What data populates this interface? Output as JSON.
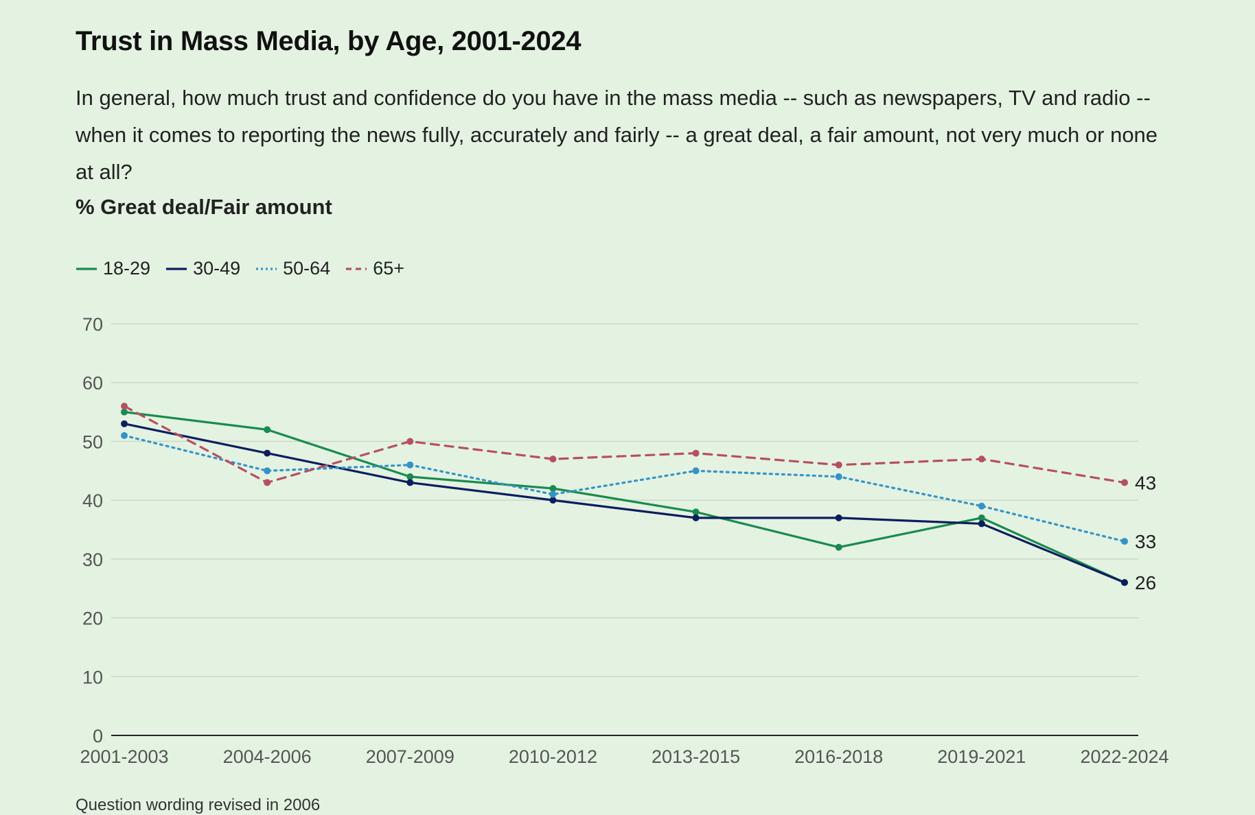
{
  "header": {
    "title": "Trust in Mass Media, by Age, 2001-2024",
    "subtitle": "In general, how much trust and confidence do you have in the mass media -- such as newspapers, TV and radio -- when it comes to reporting the news fully, accurately and fairly -- a great deal, a fair amount, not very much or none at all?",
    "unit_label": "% Great deal/Fair amount"
  },
  "footnote": "Question wording revised in 2006",
  "chart_data": {
    "type": "line",
    "title": "Trust in Mass Media, by Age, 2001-2024",
    "ylabel": "% Great deal/Fair amount",
    "xlabel": "",
    "categories": [
      "2001-2003",
      "2004-2006",
      "2007-2009",
      "2010-2012",
      "2013-2015",
      "2016-2018",
      "2019-2021",
      "2022-2024"
    ],
    "ylim": [
      0,
      70
    ],
    "yticks": [
      0,
      10,
      20,
      30,
      40,
      50,
      60,
      70
    ],
    "grid": true,
    "legend_position": "top-left",
    "series": [
      {
        "name": "18-29",
        "color": "#1a8a4e",
        "dash": "solid",
        "values": [
          55,
          52,
          44,
          42,
          38,
          32,
          37,
          26
        ],
        "end_label": ""
      },
      {
        "name": "30-49",
        "color": "#0d1e5e",
        "dash": "solid",
        "values": [
          53,
          48,
          43,
          40,
          37,
          37,
          36,
          26
        ],
        "end_label": "26"
      },
      {
        "name": "50-64",
        "color": "#3493c7",
        "dash": "dotted",
        "values": [
          51,
          45,
          46,
          41,
          45,
          44,
          39,
          33
        ],
        "end_label": "33"
      },
      {
        "name": "65+",
        "color": "#b55060",
        "dash": "dashed",
        "values": [
          56,
          43,
          50,
          47,
          48,
          46,
          47,
          43
        ],
        "end_label": "43"
      }
    ]
  }
}
